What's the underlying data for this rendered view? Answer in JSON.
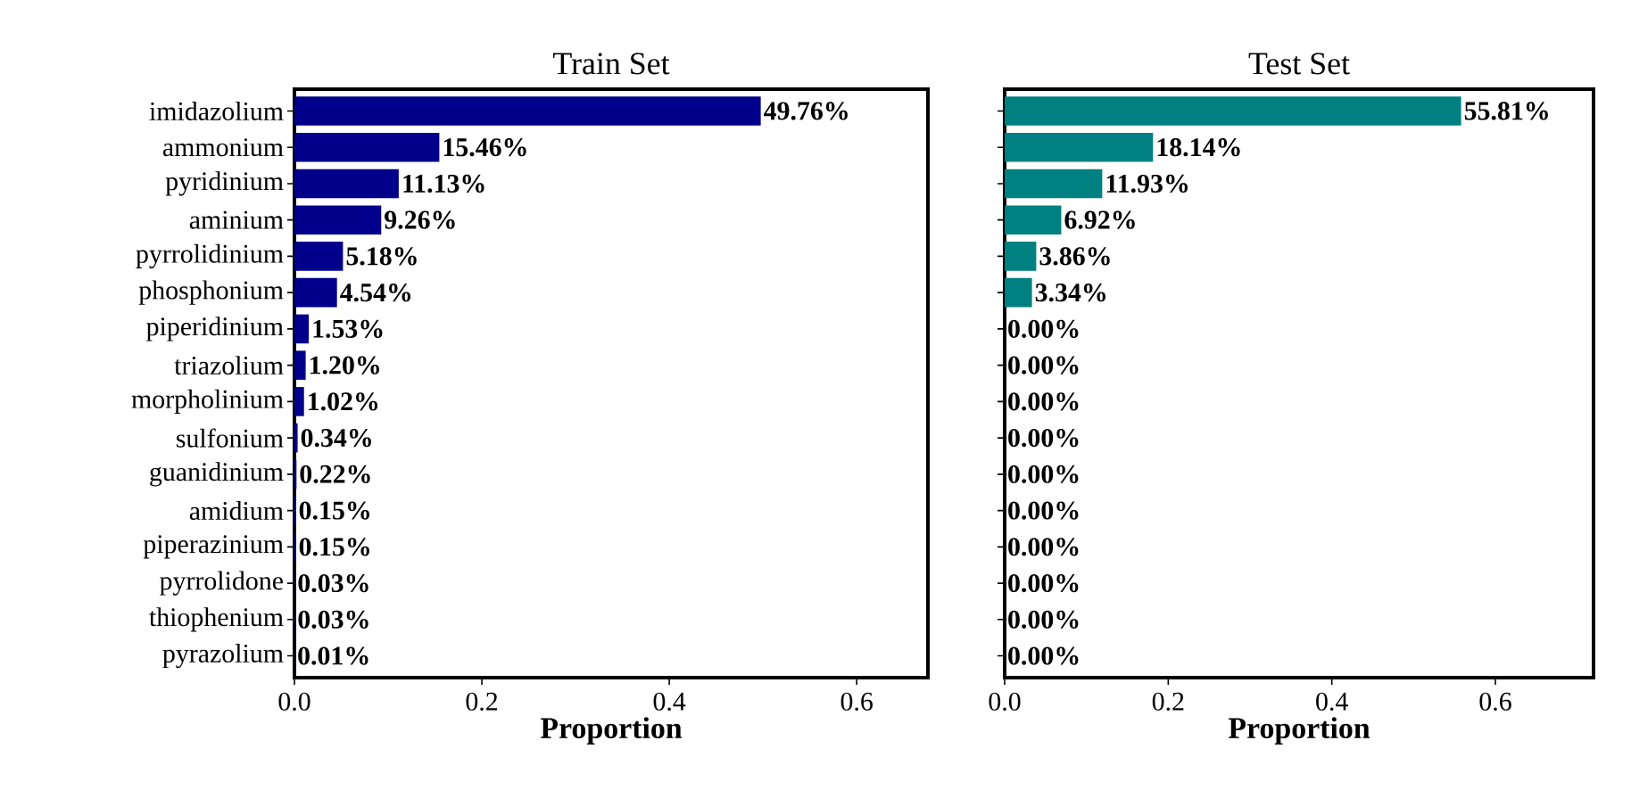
{
  "chart_data": [
    {
      "type": "bar",
      "orientation": "horizontal",
      "title": "Train Set",
      "xlabel": "Proportion",
      "categories": [
        "imidazolium",
        "ammonium",
        "pyridinium",
        "aminium",
        "pyrrolidinium",
        "phosphonium",
        "piperidinium",
        "triazolium",
        "morpholinium",
        "sulfonium",
        "guanidinium",
        "amidium",
        "piperazinium",
        "pyrrolidone",
        "thiophenium",
        "pyrazolium"
      ],
      "values": [
        0.4976,
        0.1546,
        0.1113,
        0.0926,
        0.0518,
        0.0454,
        0.0153,
        0.012,
        0.0102,
        0.0034,
        0.0022,
        0.0015,
        0.0015,
        0.0003,
        0.0003,
        0.0001
      ],
      "value_labels": [
        "49.76%",
        "15.46%",
        "11.13%",
        "9.26%",
        "5.18%",
        "4.54%",
        "1.53%",
        "1.20%",
        "1.02%",
        "0.34%",
        "0.22%",
        "0.15%",
        "0.15%",
        "0.03%",
        "0.03%",
        "0.01%"
      ],
      "color": "#00008b",
      "xlim": [
        0,
        0.676
      ],
      "xticks": [
        {
          "value": 0,
          "label": "0.0"
        },
        {
          "value": 0.2,
          "label": "0.2"
        },
        {
          "value": 0.4,
          "label": "0.4"
        },
        {
          "value": 0.6,
          "label": "0.6"
        }
      ]
    },
    {
      "type": "bar",
      "orientation": "horizontal",
      "title": "Test Set",
      "xlabel": "Proportion",
      "categories": [
        null,
        null,
        null,
        null,
        null,
        null,
        null,
        null,
        null,
        null,
        null,
        null,
        null,
        null,
        null,
        null
      ],
      "values": [
        0.5581,
        0.1814,
        0.1193,
        0.0692,
        0.0386,
        0.0334,
        0,
        0,
        0,
        0,
        0,
        0,
        0,
        0,
        0,
        0
      ],
      "value_labels": [
        "55.81%",
        "18.14%",
        "11.93%",
        "6.92%",
        "3.86%",
        "3.34%",
        "0.00%",
        "0.00%",
        "0.00%",
        "0.00%",
        "0.00%",
        "0.00%",
        "0.00%",
        "0.00%",
        "0.00%",
        "0.00%"
      ],
      "color": "#008080",
      "xlim": [
        0,
        0.72
      ],
      "tick_labels": "x",
      "xticks": [
        {
          "value": 0,
          "label": "0.0"
        },
        {
          "value": 0.2,
          "label": "0.2"
        },
        {
          "value": 0.4,
          "label": "0.4"
        },
        {
          "value": 0.6,
          "label": "0.6"
        }
      ]
    }
  ]
}
